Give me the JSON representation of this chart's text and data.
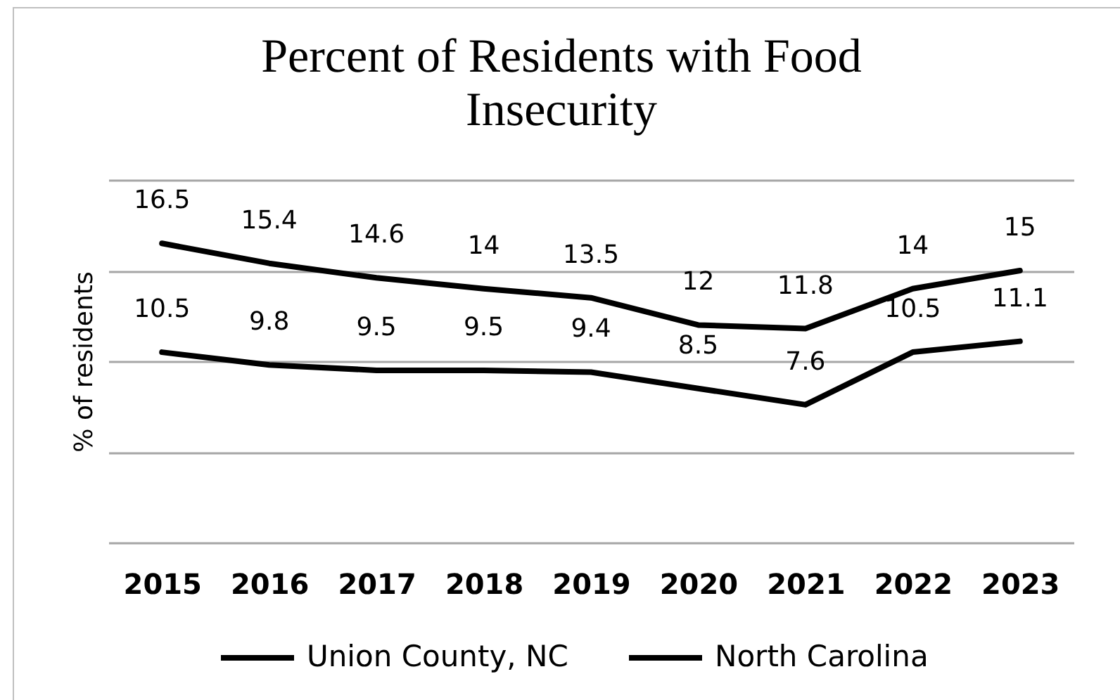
{
  "chart_data": {
    "type": "line",
    "title": "Percent of Residents with Food Insecurity",
    "ylabel": "% of residents",
    "categories": [
      "2015",
      "2016",
      "2017",
      "2018",
      "2019",
      "2020",
      "2021",
      "2022",
      "2023"
    ],
    "series": [
      {
        "name": "Union County, NC",
        "color": "#000000",
        "values": [
          10.5,
          9.8,
          9.5,
          9.5,
          9.4,
          8.5,
          7.6,
          10.5,
          11.1
        ]
      },
      {
        "name": "North Carolina",
        "color": "#000000",
        "values": [
          16.5,
          15.4,
          14.6,
          14,
          13.5,
          12,
          11.8,
          14,
          15
        ]
      }
    ],
    "ylim": [
      0,
      20
    ],
    "yticks": [
      0,
      5,
      10,
      15,
      20
    ],
    "grid": "y",
    "tick_labels": "x",
    "legend": "bottom",
    "data_labels": true
  }
}
